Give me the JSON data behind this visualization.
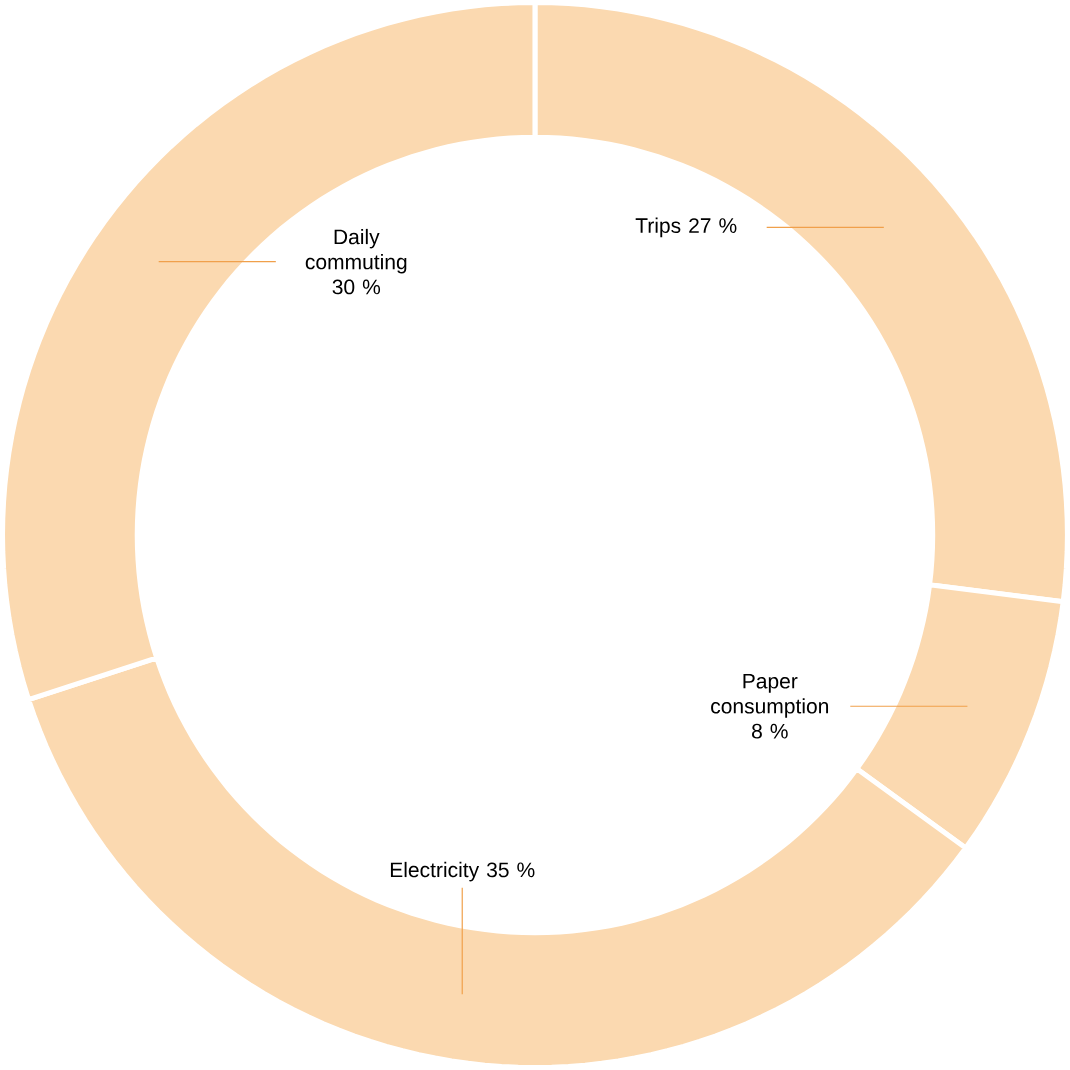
{
  "chart_data": {
    "type": "donut",
    "categories": [
      "Trips",
      "Paper consumption",
      "Electricity",
      "Daily commuting"
    ],
    "values": [
      27,
      8,
      35,
      30
    ],
    "value_labels": [
      "27 %",
      "8 %",
      "35 %",
      "30 %"
    ],
    "colors": [
      "#fbd9b0",
      "#fbd9b0",
      "#fbd9b0",
      "#fbd9b0"
    ]
  }
}
